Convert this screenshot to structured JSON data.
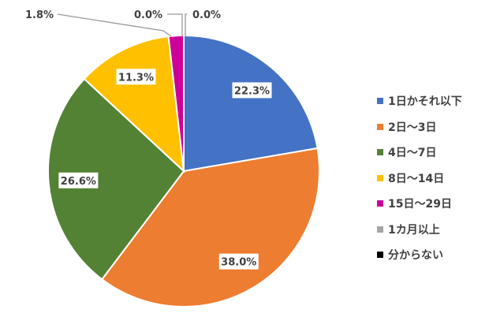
{
  "chart_data": {
    "type": "pie",
    "title": "",
    "start": "top-clockwise",
    "legend_position": "right",
    "slices": [
      {
        "label": "1日かそれ以下",
        "value": 22.3,
        "display": "22.3%",
        "color": "#4472C4"
      },
      {
        "label": "2日〜3日",
        "value": 38.0,
        "display": "38.0%",
        "color": "#ED7D31"
      },
      {
        "label": "4日〜7日",
        "value": 26.6,
        "display": "26.6%",
        "color": "#548235"
      },
      {
        "label": "8日〜14日",
        "value": 11.3,
        "display": "11.3%",
        "color": "#FFC000"
      },
      {
        "label": "15日〜29日",
        "value": 1.8,
        "display": "1.8%",
        "color": "#CC0099"
      },
      {
        "label": "1カ月以上",
        "value": 0.0,
        "display": "0.0%",
        "color": "#A5A5A5"
      },
      {
        "label": "分からない",
        "value": 0.0,
        "display": "0.0%",
        "color": "#000000"
      }
    ]
  }
}
